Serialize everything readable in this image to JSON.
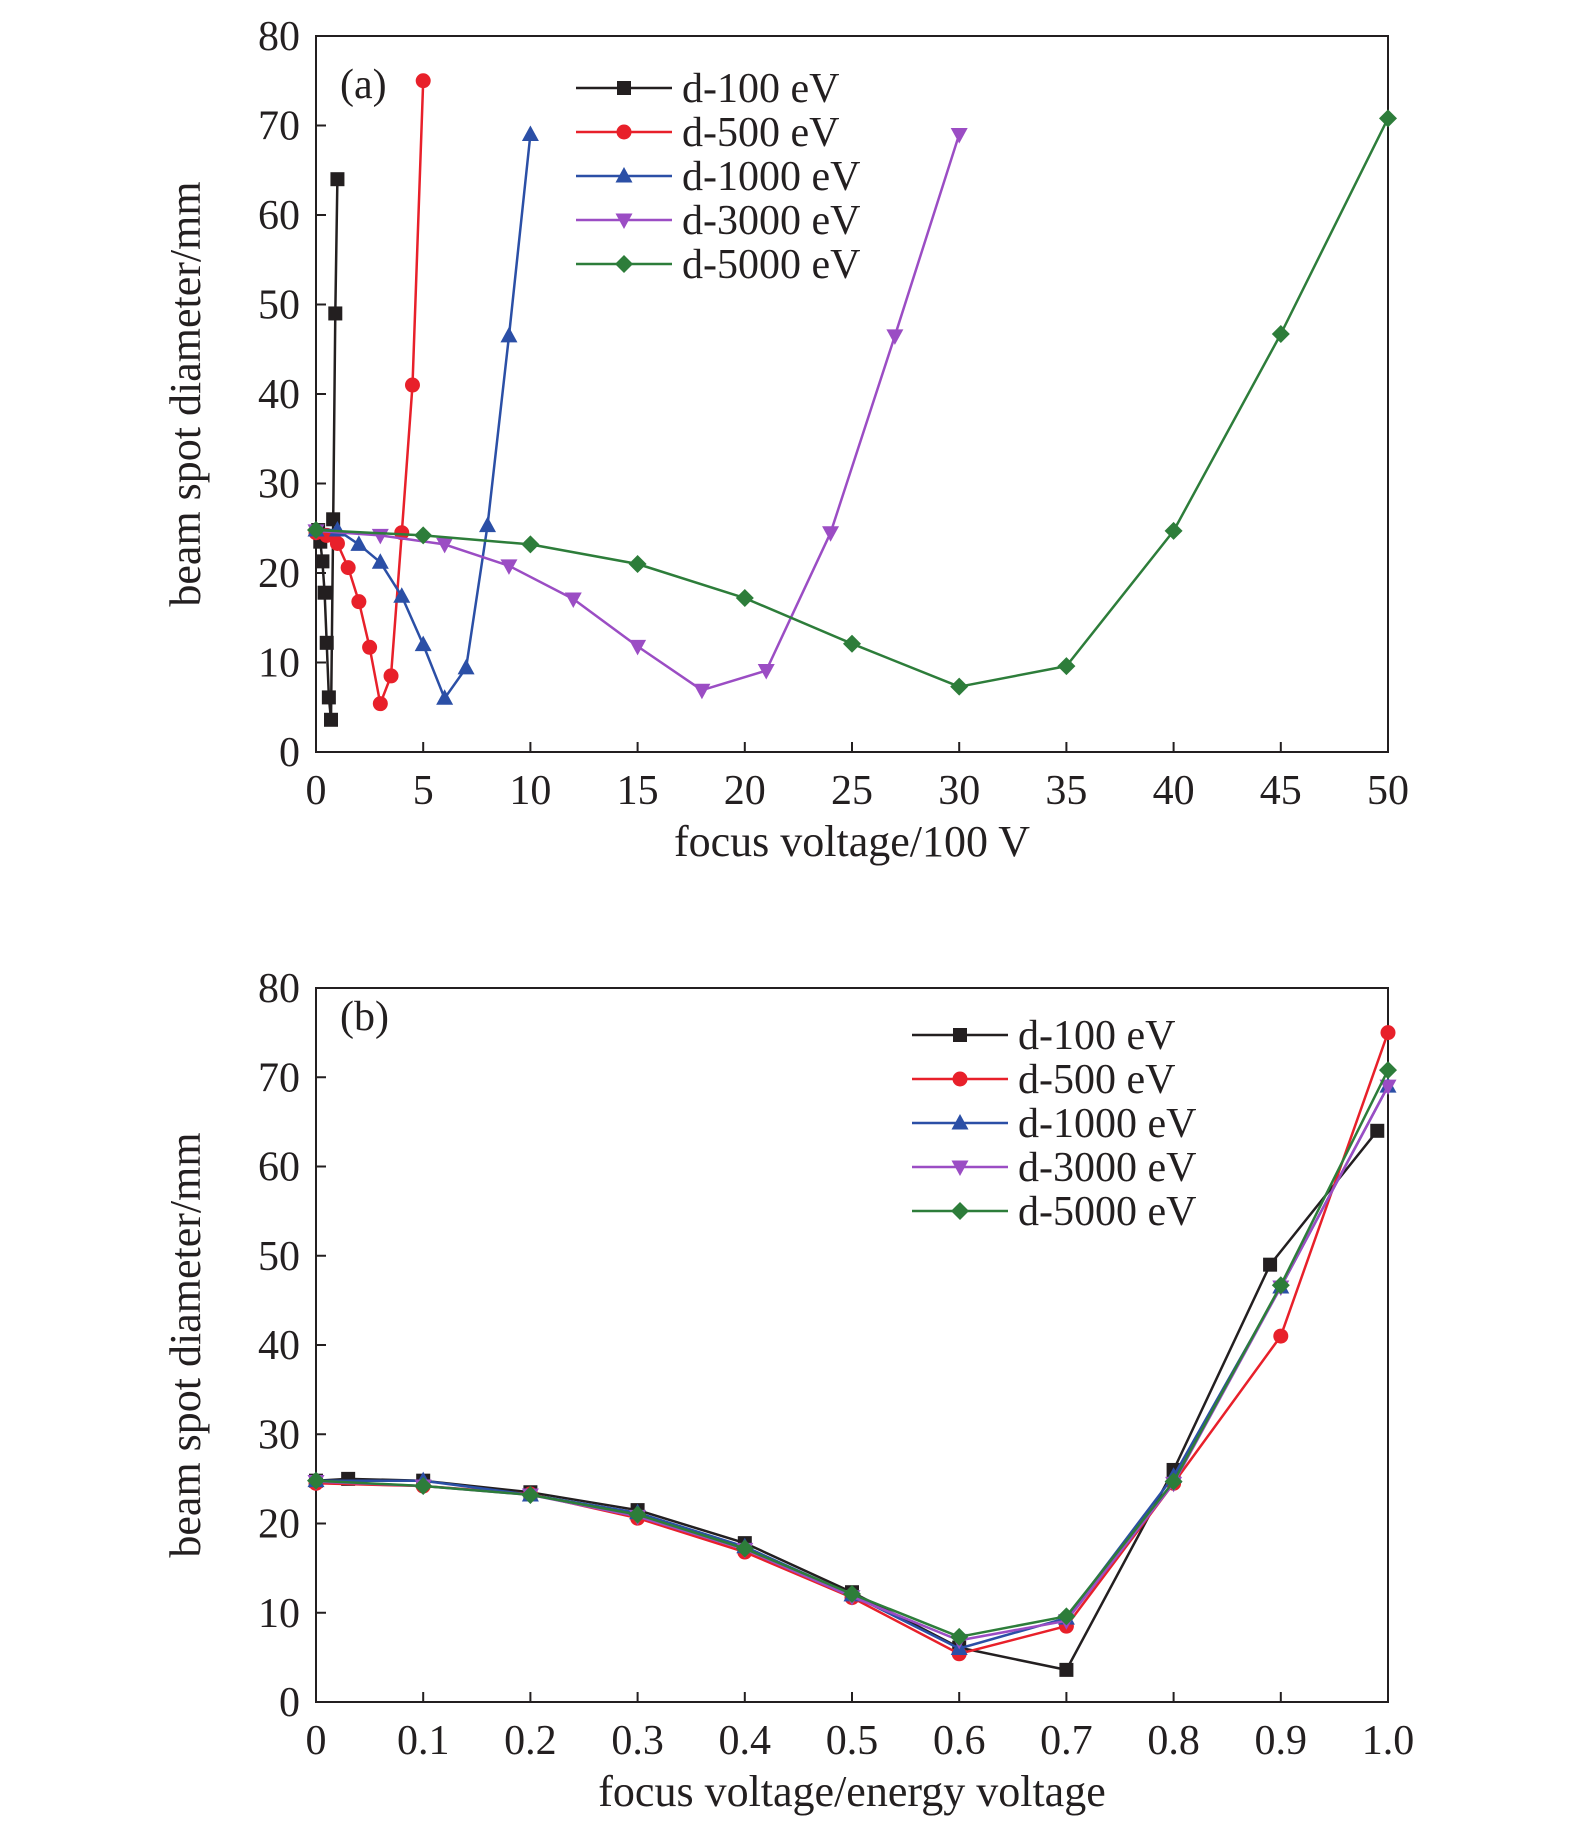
{
  "colors": {
    "axis": "#231f20",
    "series": [
      "#231f20",
      "#e8202a",
      "#2b4fa6",
      "#9b4dc4",
      "#2d7d3a"
    ]
  },
  "chart_data": [
    {
      "type": "line",
      "panel_label": "(a)",
      "xlabel": "focus voltage/100 V",
      "ylabel": "beam spot diameter/mm",
      "xlim": [
        0,
        50
      ],
      "ylim": [
        0,
        80
      ],
      "xticks": [
        0,
        5,
        10,
        15,
        20,
        25,
        30,
        35,
        40,
        45,
        50
      ],
      "xtick_labels": [
        "0",
        "5",
        "10",
        "15",
        "20",
        "25",
        "30",
        "35",
        "40",
        "45",
        "50"
      ],
      "yticks": [
        0,
        10,
        20,
        30,
        40,
        50,
        60,
        70,
        80
      ],
      "ytick_labels": [
        "0",
        "10",
        "20",
        "30",
        "40",
        "50",
        "60",
        "70",
        "80"
      ],
      "legend_position": "top-center",
      "series": [
        {
          "name": "d-100 eV",
          "color": "#231f20",
          "marker": "square",
          "x": [
            0.1,
            0.2,
            0.3,
            0.4,
            0.5,
            0.6,
            0.7,
            0.8,
            0.9,
            1.0
          ],
          "y": [
            24.8,
            23.5,
            21.3,
            17.8,
            12.2,
            6.1,
            3.6,
            26.0,
            49.0,
            64.0
          ]
        },
        {
          "name": "d-500 eV",
          "color": "#e8202a",
          "marker": "circle",
          "x": [
            0,
            0.5,
            1.0,
            1.5,
            2.0,
            2.5,
            3.0,
            3.5,
            4.0,
            4.5,
            5.0
          ],
          "y": [
            24.5,
            24.2,
            23.3,
            20.6,
            16.8,
            11.7,
            5.4,
            8.5,
            24.5,
            41.0,
            75.0
          ]
        },
        {
          "name": "d-1000 eV",
          "color": "#2b4fa6",
          "marker": "triangle-up",
          "x": [
            0,
            1,
            2,
            3,
            4,
            5,
            6,
            7,
            8,
            9,
            10
          ],
          "y": [
            24.8,
            24.8,
            23.2,
            21.2,
            17.4,
            12.0,
            6.0,
            9.4,
            25.3,
            46.5,
            69.0
          ]
        },
        {
          "name": "d-3000 eV",
          "color": "#9b4dc4",
          "marker": "triangle-down",
          "x": [
            0,
            3,
            6,
            9,
            12,
            15,
            18,
            21,
            24,
            27,
            30
          ],
          "y": [
            24.7,
            24.2,
            23.2,
            20.8,
            17.1,
            11.8,
            6.9,
            9.1,
            24.5,
            46.5,
            69.0
          ]
        },
        {
          "name": "d-5000 eV",
          "color": "#2d7d3a",
          "marker": "diamond",
          "x": [
            0,
            5,
            10,
            15,
            20,
            25,
            30,
            35,
            40,
            45,
            50
          ],
          "y": [
            24.8,
            24.2,
            23.2,
            21.0,
            17.2,
            12.1,
            7.3,
            9.6,
            24.7,
            46.7,
            70.8
          ]
        }
      ]
    },
    {
      "type": "line",
      "panel_label": "(b)",
      "xlabel": "focus voltage/energy voltage",
      "ylabel": "beam spot diameter/mm",
      "xlim": [
        0,
        1.0
      ],
      "ylim": [
        0,
        80
      ],
      "xticks": [
        0,
        0.1,
        0.2,
        0.3,
        0.4,
        0.5,
        0.6,
        0.7,
        0.8,
        0.9,
        1.0
      ],
      "xtick_labels": [
        "0",
        "0.1",
        "0.2",
        "0.3",
        "0.4",
        "0.5",
        "0.6",
        "0.7",
        "0.8",
        "0.9",
        "1.0"
      ],
      "yticks": [
        0,
        10,
        20,
        30,
        40,
        50,
        60,
        70,
        80
      ],
      "ytick_labels": [
        "0",
        "10",
        "20",
        "30",
        "40",
        "50",
        "60",
        "70",
        "80"
      ],
      "legend_position": "top-right",
      "series": [
        {
          "name": "d-100 eV",
          "color": "#231f20",
          "marker": "square",
          "x": [
            0,
            0.03,
            0.1,
            0.2,
            0.3,
            0.4,
            0.5,
            0.6,
            0.7,
            0.8,
            0.89,
            0.99
          ],
          "y": [
            24.8,
            25.0,
            24.8,
            23.5,
            21.5,
            17.8,
            12.3,
            6.1,
            3.6,
            26.0,
            49.0,
            64.0
          ]
        },
        {
          "name": "d-500 eV",
          "color": "#e8202a",
          "marker": "circle",
          "x": [
            0,
            0.1,
            0.2,
            0.3,
            0.4,
            0.5,
            0.6,
            0.7,
            0.8,
            0.9,
            1.0
          ],
          "y": [
            24.5,
            24.2,
            23.3,
            20.6,
            16.8,
            11.7,
            5.4,
            8.5,
            24.5,
            41.0,
            75.0
          ]
        },
        {
          "name": "d-1000 eV",
          "color": "#2b4fa6",
          "marker": "triangle-up",
          "x": [
            0,
            0.1,
            0.2,
            0.3,
            0.4,
            0.5,
            0.6,
            0.7,
            0.8,
            0.9,
            1.0
          ],
          "y": [
            24.8,
            24.8,
            23.2,
            21.2,
            17.4,
            12.0,
            6.0,
            9.4,
            25.3,
            46.5,
            69.0
          ]
        },
        {
          "name": "d-3000 eV",
          "color": "#9b4dc4",
          "marker": "triangle-down",
          "x": [
            0,
            0.1,
            0.2,
            0.3,
            0.4,
            0.5,
            0.6,
            0.7,
            0.8,
            0.9,
            1.0
          ],
          "y": [
            24.7,
            24.2,
            23.2,
            20.8,
            17.1,
            11.8,
            6.9,
            9.1,
            24.5,
            46.5,
            69.0
          ]
        },
        {
          "name": "d-5000 eV",
          "color": "#2d7d3a",
          "marker": "diamond",
          "x": [
            0,
            0.1,
            0.2,
            0.3,
            0.4,
            0.5,
            0.6,
            0.7,
            0.8,
            0.9,
            1.0
          ],
          "y": [
            24.8,
            24.2,
            23.2,
            21.0,
            17.2,
            12.1,
            7.3,
            9.6,
            24.7,
            46.7,
            70.8
          ]
        }
      ]
    }
  ]
}
